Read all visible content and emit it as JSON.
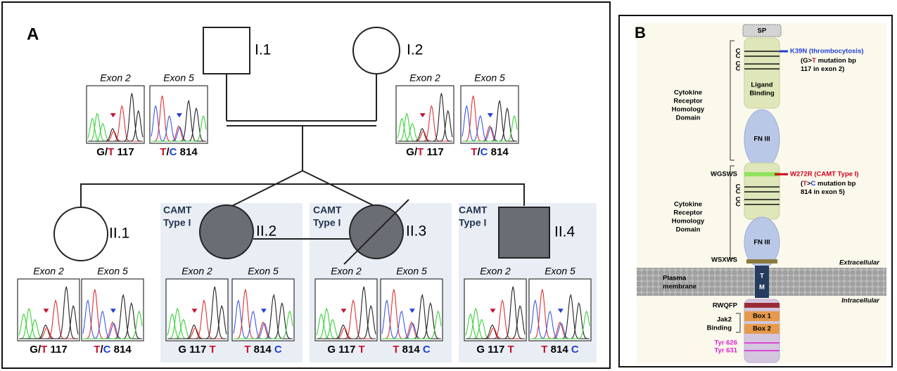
{
  "panel_a": {
    "label": "A",
    "individuals": [
      {
        "id": "I.1",
        "shape": "square",
        "affected": false,
        "deceased": false,
        "traces": [
          {
            "exon": "Exon 2",
            "genotype": [
              {
                "text": "G/",
                "color": "#000000"
              },
              {
                "text": "T",
                "color": "#c8102e"
              },
              {
                "text": " 117",
                "color": "#000000"
              }
            ]
          },
          {
            "exon": "Exon 5",
            "genotype": [
              {
                "text": "T",
                "color": "#c8102e"
              },
              {
                "text": "/",
                "color": "#000000"
              },
              {
                "text": "C",
                "color": "#1f3fd6"
              },
              {
                "text": " 814",
                "color": "#000000"
              }
            ]
          }
        ]
      },
      {
        "id": "I.2",
        "shape": "circle",
        "affected": false,
        "deceased": false,
        "traces": [
          {
            "exon": "Exon 2",
            "genotype": [
              {
                "text": "G/",
                "color": "#000000"
              },
              {
                "text": "T",
                "color": "#c8102e"
              },
              {
                "text": " 117",
                "color": "#000000"
              }
            ]
          },
          {
            "exon": "Exon 5",
            "genotype": [
              {
                "text": "T",
                "color": "#c8102e"
              },
              {
                "text": "/",
                "color": "#000000"
              },
              {
                "text": "C",
                "color": "#1f3fd6"
              },
              {
                "text": " 814",
                "color": "#000000"
              }
            ]
          }
        ]
      },
      {
        "id": "II.1",
        "shape": "circle",
        "affected": false,
        "deceased": false,
        "traces": [
          {
            "exon": "Exon 2",
            "genotype": [
              {
                "text": "G/",
                "color": "#000000"
              },
              {
                "text": "T",
                "color": "#c8102e"
              },
              {
                "text": " 117",
                "color": "#000000"
              }
            ]
          },
          {
            "exon": "Exon 5",
            "genotype": [
              {
                "text": "T",
                "color": "#c8102e"
              },
              {
                "text": "/",
                "color": "#000000"
              },
              {
                "text": "C",
                "color": "#1f3fd6"
              },
              {
                "text": " 814",
                "color": "#000000"
              }
            ]
          }
        ]
      },
      {
        "id": "II.2",
        "shape": "circle",
        "affected": true,
        "deceased": false,
        "annotation": [
          "CAMT",
          "Type I"
        ],
        "traces": [
          {
            "exon": "Exon 2",
            "genotype": [
              {
                "text": "G 117 ",
                "color": "#000000"
              },
              {
                "text": "T",
                "color": "#c8102e"
              }
            ]
          },
          {
            "exon": "Exon 5",
            "genotype": [
              {
                "text": "T",
                "color": "#c8102e"
              },
              {
                "text": " 814 ",
                "color": "#000000"
              },
              {
                "text": "C",
                "color": "#1f3fd6"
              }
            ]
          }
        ]
      },
      {
        "id": "II.3",
        "shape": "circle",
        "affected": true,
        "deceased": true,
        "annotation": [
          "CAMT",
          "Type I"
        ],
        "traces": [
          {
            "exon": "Exon 2",
            "genotype": [
              {
                "text": "G 117 ",
                "color": "#000000"
              },
              {
                "text": "T",
                "color": "#c8102e"
              }
            ]
          },
          {
            "exon": "Exon 5",
            "genotype": [
              {
                "text": "T",
                "color": "#c8102e"
              },
              {
                "text": " 814 ",
                "color": "#000000"
              },
              {
                "text": "C",
                "color": "#1f3fd6"
              }
            ]
          }
        ]
      },
      {
        "id": "II.4",
        "shape": "square",
        "affected": true,
        "deceased": false,
        "annotation": [
          "CAMT",
          "Type I"
        ],
        "traces": [
          {
            "exon": "Exon 2",
            "genotype": [
              {
                "text": "G 117 ",
                "color": "#000000"
              },
              {
                "text": "T",
                "color": "#c8102e"
              }
            ]
          },
          {
            "exon": "Exon 5",
            "genotype": [
              {
                "text": "T",
                "color": "#c8102e"
              },
              {
                "text": " 814 ",
                "color": "#000000"
              },
              {
                "text": "C",
                "color": "#1f3fd6"
              }
            ]
          }
        ]
      }
    ]
  },
  "panel_b": {
    "label": "B",
    "signal_peptide": "SP",
    "domain_labels": [
      [
        "Cytokine",
        "Receptor",
        "Homology",
        "Domain"
      ],
      [
        "Cytokine",
        "Receptor",
        "Homology",
        "Domain"
      ]
    ],
    "cysteines": [
      [
        "C",
        "C",
        "C",
        "C"
      ],
      [
        "C",
        "C",
        "C",
        "C"
      ]
    ],
    "ligand_binding": [
      "Ligand",
      "Binding"
    ],
    "fn3": [
      "FN III",
      "FN III"
    ],
    "wgsws": "WGSWS",
    "wsxws": "WSXWS",
    "rwqfp": "RWQFP",
    "mutations": [
      {
        "name": "K39N (thrombocytosis)",
        "color": "#1f3fd6",
        "detail": [
          [
            {
              "text": "(",
              "color": "#000000"
            },
            {
              "text": "G",
              "color": "#000000"
            },
            {
              "text": ">",
              "color": "#000000"
            },
            {
              "text": "T",
              "color": "#c8102e"
            },
            {
              "text": " mutation bp",
              "color": "#000000"
            }
          ],
          [
            {
              "text": "117 in exon 2)",
              "color": "#000000"
            }
          ]
        ]
      },
      {
        "name": "W272R (CAMT Type I)",
        "color": "#d0021b",
        "detail": [
          [
            {
              "text": "(",
              "color": "#000000"
            },
            {
              "text": "T",
              "color": "#c8102e"
            },
            {
              "text": ">",
              "color": "#000000"
            },
            {
              "text": "C",
              "color": "#1f3fd6"
            },
            {
              "text": " mutation bp",
              "color": "#000000"
            }
          ],
          [
            {
              "text": "814 in exon 5)",
              "color": "#000000"
            }
          ]
        ]
      }
    ],
    "extracellular": "Extracellular",
    "intracellular": "Intracellular",
    "membrane": [
      "Plasma",
      "membrane"
    ],
    "tm": [
      "T",
      "M"
    ],
    "jak2": [
      "Jak2",
      "Binding"
    ],
    "boxes": [
      "Box 1",
      "Box 2"
    ],
    "tyrosines": [
      "Tyr 626",
      "Tyr 631"
    ],
    "tyrosine_color": "#e020d0"
  }
}
